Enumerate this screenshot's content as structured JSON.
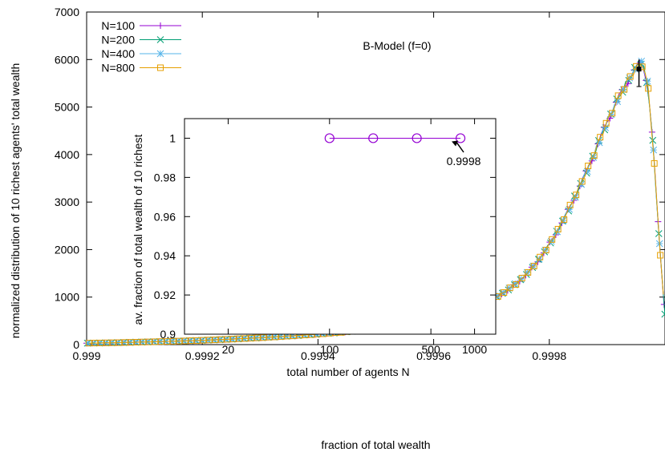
{
  "chart_data": [
    {
      "type": "line",
      "annotation": "B-Model (f=0)",
      "xlabel": "fraction of total wealth",
      "ylabel": "normalized distribution of 10 richest agents' total wealth",
      "xlim": [
        0.999,
        1.0
      ],
      "ylim": [
        0,
        7000
      ],
      "x_ticks": [
        0.999,
        0.9992,
        0.9994,
        0.9996,
        0.9998
      ],
      "x_tick_labels": [
        "0.999",
        "0.9992",
        "0.9994",
        "0.9996",
        "0.9998"
      ],
      "y_ticks": [
        0,
        1000,
        2000,
        3000,
        4000,
        5000,
        6000,
        7000
      ],
      "y_tick_labels": [
        "0",
        "1000",
        "2000",
        "3000",
        "4000",
        "5000",
        "6000",
        "7000"
      ],
      "legend_position": "top-left",
      "grid": false,
      "series": [
        {
          "name": "N=100",
          "color": "#9400d3",
          "marker": "plus"
        },
        {
          "name": "N=200",
          "color": "#009e73",
          "marker": "cross"
        },
        {
          "name": "N=400",
          "color": "#56b4e9",
          "marker": "star"
        },
        {
          "name": "N=800",
          "color": "#e69f00",
          "marker": "square"
        }
      ],
      "curve": {
        "x": [
          0.999,
          0.99905,
          0.9991,
          0.99915,
          0.9992,
          0.99925,
          0.9993,
          0.99935,
          0.9994,
          0.99945,
          0.9995,
          0.99955,
          0.9996,
          0.99963,
          0.99966,
          0.99969,
          0.99972,
          0.99975,
          0.99978,
          0.99981,
          0.99984,
          0.99987,
          0.9999,
          0.99992,
          0.99994,
          0.99996,
          0.99997,
          0.99998,
          0.99999,
          1.0
        ],
        "y": [
          30,
          40,
          55,
          70,
          90,
          115,
          145,
          180,
          220,
          270,
          340,
          420,
          520,
          610,
          730,
          880,
          1080,
          1350,
          1750,
          2300,
          3000,
          3800,
          4700,
          5200,
          5650,
          5950,
          5500,
          4100,
          2200,
          600
        ]
      },
      "errorbar": {
        "x": 0.999955,
        "y": 5800,
        "low": 5600,
        "high": 6000
      }
    },
    {
      "type": "line",
      "xlabel": "total number of agents N",
      "ylabel": "av. fraction of total wealth of 10 richest",
      "xscale": "log",
      "xlim": [
        10,
        1400
      ],
      "ylim": [
        0.9,
        1.01
      ],
      "x_ticks": [
        20,
        100,
        500,
        1000
      ],
      "x_tick_labels": [
        "20",
        "100",
        "500",
        "1000"
      ],
      "y_ticks": [
        0.9,
        0.92,
        0.94,
        0.96,
        0.98,
        1.0
      ],
      "y_tick_labels": [
        "0.9",
        "0.92",
        "0.94",
        "0.96",
        "0.98",
        "1"
      ],
      "series": [
        {
          "color": "#9400d3",
          "marker": "circle",
          "x": [
            100,
            200,
            400,
            800
          ],
          "y": [
            1.0,
            1.0,
            1.0,
            1.0
          ]
        }
      ],
      "annotation": "0.9998"
    }
  ]
}
